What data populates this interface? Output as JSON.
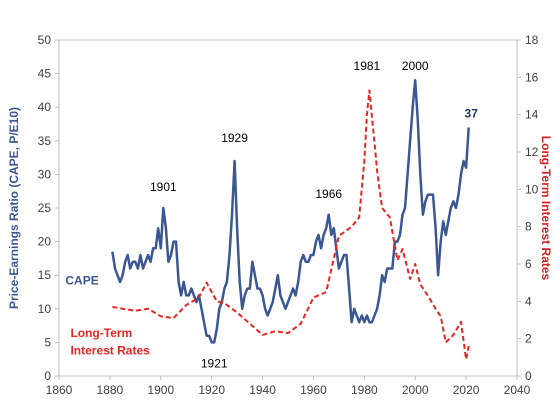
{
  "chart_data": {
    "type": "line",
    "title": "",
    "xlabel": "",
    "ylabel": "Price-Earnings Ratio (CAPE, P/E10)",
    "y2label": "Long-Term Interest Rates",
    "xlim": [
      1860,
      2040
    ],
    "ylim": [
      0,
      50
    ],
    "y2lim": [
      0,
      18
    ],
    "grid": false,
    "x_ticks": [
      "1860",
      "1880",
      "1900",
      "1920",
      "1940",
      "1960",
      "1980",
      "2000",
      "2020",
      "2040"
    ],
    "y_ticks": [
      "0",
      "5",
      "10",
      "15",
      "20",
      "25",
      "30",
      "35",
      "40",
      "45",
      "50"
    ],
    "y2_ticks": [
      "0",
      "2",
      "4",
      "6",
      "8",
      "10",
      "12",
      "14",
      "16",
      "18"
    ],
    "series": [
      {
        "name": "CAPE",
        "axis": "left",
        "color": "#3A5794",
        "style": "solid",
        "x": [
          1881,
          1882,
          1883,
          1884,
          1885,
          1886,
          1887,
          1888,
          1889,
          1890,
          1891,
          1892,
          1893,
          1894,
          1895,
          1896,
          1897,
          1898,
          1899,
          1900,
          1901,
          1902,
          1903,
          1904,
          1905,
          1906,
          1907,
          1908,
          1909,
          1910,
          1911,
          1912,
          1913,
          1914,
          1915,
          1916,
          1917,
          1918,
          1919,
          1920,
          1921,
          1922,
          1923,
          1924,
          1925,
          1926,
          1927,
          1928,
          1929,
          1930,
          1931,
          1932,
          1933,
          1934,
          1935,
          1936,
          1937,
          1938,
          1939,
          1940,
          1941,
          1942,
          1943,
          1944,
          1945,
          1946,
          1947,
          1948,
          1949,
          1950,
          1951,
          1952,
          1953,
          1954,
          1955,
          1956,
          1957,
          1958,
          1959,
          1960,
          1961,
          1962,
          1963,
          1964,
          1965,
          1966,
          1967,
          1968,
          1969,
          1970,
          1971,
          1972,
          1973,
          1974,
          1975,
          1976,
          1977,
          1978,
          1979,
          1980,
          1981,
          1982,
          1983,
          1984,
          1985,
          1986,
          1987,
          1988,
          1989,
          1990,
          1991,
          1992,
          1993,
          1994,
          1995,
          1996,
          1997,
          1998,
          1999,
          2000,
          2001,
          2002,
          2003,
          2004,
          2005,
          2006,
          2007,
          2008,
          2009,
          2010,
          2011,
          2012,
          2013,
          2014,
          2015,
          2016,
          2017,
          2018,
          2019,
          2020,
          2021
        ],
        "values": [
          18.5,
          16,
          15,
          14,
          15,
          17,
          18,
          16,
          17,
          17,
          16,
          18,
          16,
          17,
          18,
          17,
          19,
          19,
          22,
          19,
          25,
          22,
          17,
          18,
          20,
          20,
          14,
          12,
          14,
          12,
          12,
          13,
          12,
          11,
          12,
          10,
          8,
          6,
          6,
          5,
          5,
          7,
          10,
          11,
          13,
          14,
          18,
          24,
          32,
          22,
          14,
          10,
          12,
          13,
          13,
          17,
          15,
          13,
          13,
          12,
          10,
          9,
          10,
          11,
          13,
          15,
          12,
          11,
          10,
          11,
          12,
          13,
          12,
          14,
          17,
          18,
          17,
          17,
          18,
          18,
          20,
          21,
          19,
          21,
          22,
          24,
          21,
          22,
          19,
          16,
          17,
          18,
          18,
          13,
          8,
          10,
          9,
          8,
          9,
          8,
          9,
          8,
          8,
          9,
          10,
          12,
          15,
          14,
          16,
          16,
          16,
          20,
          20,
          21,
          24,
          25,
          30,
          35,
          40,
          44,
          38,
          30,
          24,
          26,
          27,
          27,
          27,
          22,
          15,
          20,
          23,
          21,
          23,
          25,
          26,
          25,
          27,
          30,
          32,
          31,
          37
        ]
      },
      {
        "name": "Long-Term Interest Rates",
        "axis": "right",
        "color": "#E8251F",
        "style": "dashed",
        "x": [
          1881,
          1885,
          1890,
          1895,
          1900,
          1905,
          1910,
          1915,
          1918,
          1920,
          1922,
          1925,
          1930,
          1935,
          1940,
          1945,
          1950,
          1955,
          1960,
          1965,
          1970,
          1975,
          1978,
          1980,
          1981,
          1982,
          1984,
          1985,
          1987,
          1990,
          1993,
          1995,
          1998,
          2000,
          2002,
          2005,
          2008,
          2010,
          2012,
          2015,
          2018,
          2020,
          2021
        ],
        "values": [
          3.7,
          3.6,
          3.5,
          3.6,
          3.2,
          3.1,
          3.8,
          4.2,
          5.0,
          4.5,
          4.0,
          3.9,
          3.4,
          2.8,
          2.2,
          2.4,
          2.3,
          2.8,
          4.2,
          4.5,
          7.5,
          8.0,
          8.5,
          11.5,
          14.0,
          15.3,
          12.5,
          11.0,
          9.0,
          8.5,
          6.2,
          6.8,
          5.2,
          6.0,
          4.9,
          4.3,
          3.6,
          3.2,
          1.8,
          2.2,
          2.9,
          0.9,
          1.6
        ]
      }
    ],
    "annotations": [
      "1901",
      "1929",
      "1921",
      "1966",
      "1981",
      "2000",
      "37"
    ],
    "series_labels": {
      "cape": "CAPE",
      "rates": "Long-Term\nInterest Rates"
    }
  }
}
